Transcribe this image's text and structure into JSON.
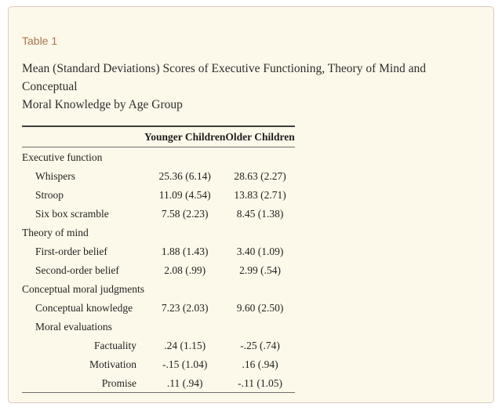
{
  "panel": {
    "label": "Table 1"
  },
  "title": {
    "line1": "Mean (Standard Deviations) Scores of Executive Functioning, Theory of Mind and Conceptual",
    "line2": "Moral Knowledge by Age Group"
  },
  "table": {
    "columns": [
      "",
      "Younger Children",
      "Older Children"
    ],
    "rows": [
      {
        "label": "Executive function",
        "younger": "",
        "older": ""
      },
      {
        "label": "Whispers",
        "younger": "25.36 (6.14)",
        "older": "28.63 (2.27)"
      },
      {
        "label": "Stroop",
        "younger": "11.09 (4.54)",
        "older": "13.83 (2.71)"
      },
      {
        "label": "Six box scramble",
        "younger": "7.58 (2.23)",
        "older": "8.45 (1.38)"
      },
      {
        "label": "Theory of mind",
        "younger": "",
        "older": ""
      },
      {
        "label": "First-order belief",
        "younger": "1.88 (1.43)",
        "older": "3.40 (1.09)"
      },
      {
        "label": "Second-order belief",
        "younger": "2.08 (.99)",
        "older": "2.99 (.54)"
      },
      {
        "label": "Conceptual moral judgments",
        "younger": "",
        "older": ""
      },
      {
        "label": "Conceptual knowledge",
        "younger": "7.23 (2.03)",
        "older": "9.60 (2.50)"
      },
      {
        "label": "Moral evaluations",
        "younger": "",
        "older": ""
      },
      {
        "label": "Factuality",
        "younger": ".24 (1.15)",
        "older": "-.25 (.74)"
      },
      {
        "label": "Motivation",
        "younger": "-.15 (1.04)",
        "older": ".16 (.94)"
      },
      {
        "label": "Promise",
        "younger": ".11 (.94)",
        "older": "-.11 (1.05)"
      }
    ]
  },
  "colors": {
    "panel_background": "#fdf9ea",
    "panel_border": "#d9c9bf",
    "accent_heading": "#a9744f",
    "body_text": "#2d2d2d",
    "rule": "#3d3d3d"
  }
}
